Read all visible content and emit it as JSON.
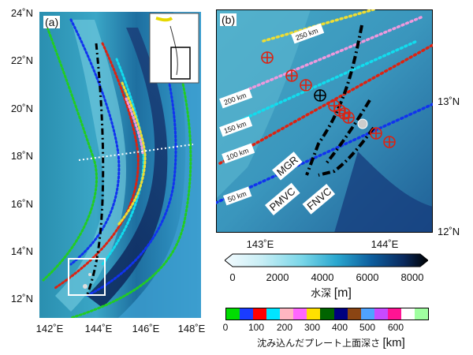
{
  "panel_a": {
    "label": "(a)",
    "lat_labels": [
      "24˚N",
      "22˚N",
      "20˚N",
      "18˚N",
      "16˚N",
      "14˚N",
      "12˚N"
    ],
    "lon_labels": [
      "142˚E",
      "144˚E",
      "146˚E",
      "148˚E"
    ]
  },
  "panel_b": {
    "label": "(b)",
    "lat_labels": [
      "13˚N",
      "12˚N"
    ],
    "lon_labels": [
      "143˚E",
      "144˚E"
    ],
    "distance_labels": [
      "250 km",
      "200 km",
      "150 km",
      "100 km",
      "50 km"
    ],
    "feature_labels": [
      "MGR",
      "PMVC",
      "FNVC"
    ]
  },
  "depth_colorbar": {
    "ticks": [
      "0",
      "2000",
      "4000",
      "6000",
      "8000"
    ],
    "title": "水深",
    "unit": "[m]",
    "colors": [
      "#f4fbff",
      "#c8eef5",
      "#79d6e8",
      "#2aa7cf",
      "#0d5e9e",
      "#0a2a5e",
      "#000000"
    ]
  },
  "slab_colorbar": {
    "ticks": [
      "0",
      "100",
      "200",
      "300",
      "400",
      "500",
      "600"
    ],
    "title": "沈み込んだプレート上面深さ",
    "unit": "[km]",
    "colors": [
      "#00dd00",
      "#1a3cff",
      "#ff0000",
      "#00e5ff",
      "#ffb6c1",
      "#ff66ff",
      "#ffe000",
      "#006400",
      "#000080",
      "#8b4513",
      "#4fa3ff",
      "#c84bff",
      "#ff1493",
      "#ffffff",
      "#a0ffa0"
    ]
  },
  "contour_colors": {
    "green": "#22cc22",
    "blue": "#1133ee",
    "red": "#dd2211",
    "cyan": "#11ddee",
    "pink": "#ee99dd",
    "yellow": "#eedd33",
    "black": "#000000"
  }
}
